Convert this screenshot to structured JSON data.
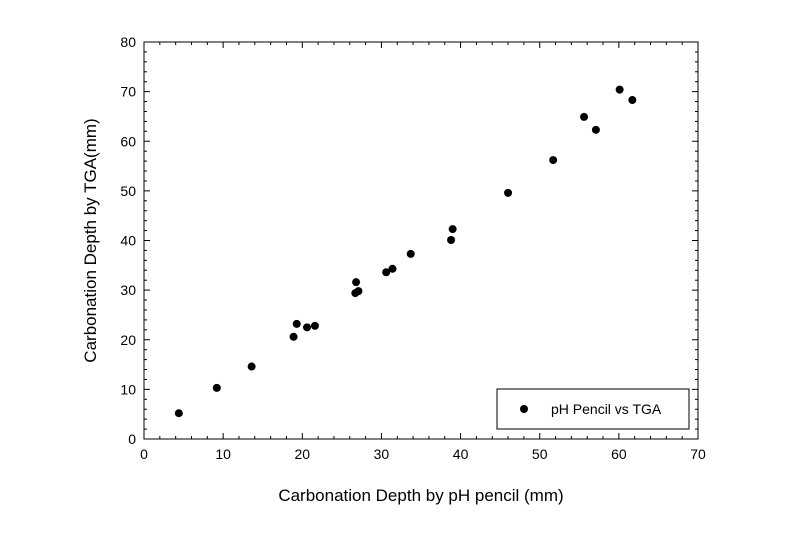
{
  "chart_data": {
    "type": "scatter",
    "title": "",
    "xlabel": "Carbonation Depth by pH pencil (mm)",
    "ylabel": "Carbonation Depth by TGA(mm)",
    "xlim": [
      0,
      70
    ],
    "ylim": [
      0,
      80
    ],
    "x_ticks": [
      "0",
      "10",
      "20",
      "30",
      "40",
      "50",
      "60",
      "70"
    ],
    "y_ticks": [
      "0",
      "10",
      "20",
      "30",
      "40",
      "50",
      "60",
      "70",
      "80"
    ],
    "grid": false,
    "legend_position": "bottom-right",
    "series": [
      {
        "name": "pH Pencil vs TGA",
        "marker": "circle",
        "color": "#000000",
        "points": [
          [
            4.4,
            5.2
          ],
          [
            9.2,
            10.3
          ],
          [
            13.6,
            14.6
          ],
          [
            18.9,
            20.6
          ],
          [
            19.3,
            23.2
          ],
          [
            20.6,
            22.5
          ],
          [
            21.6,
            22.8
          ],
          [
            26.7,
            29.4
          ],
          [
            26.8,
            31.6
          ],
          [
            27.1,
            29.8
          ],
          [
            30.6,
            33.6
          ],
          [
            31.4,
            34.3
          ],
          [
            33.7,
            37.3
          ],
          [
            38.8,
            40.1
          ],
          [
            39.0,
            42.3
          ],
          [
            46.0,
            49.6
          ],
          [
            51.7,
            56.2
          ],
          [
            55.6,
            64.9
          ],
          [
            57.1,
            62.3
          ],
          [
            60.1,
            70.4
          ],
          [
            61.7,
            68.3
          ]
        ]
      }
    ]
  }
}
